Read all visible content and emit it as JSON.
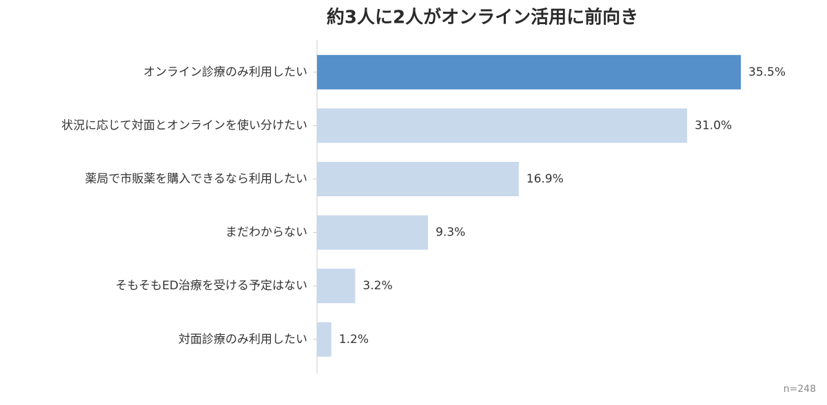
{
  "chart_data": {
    "type": "hbar",
    "title": "約3人に2人がオンライン活用に前向き",
    "categories": [
      "オンライン診療のみ利用したい",
      "状況に応じて対面とオンラインを使い分けたい",
      "薬局で市販薬を購入できるなら利用したい",
      "まだわからない",
      "そもそもED治療を受ける予定はない",
      "対面診療のみ利用したい"
    ],
    "values": [
      35.5,
      31.0,
      16.9,
      9.3,
      3.2,
      1.2
    ],
    "value_labels": [
      "35.5%",
      "31.0%",
      "16.9%",
      "9.3%",
      "3.2%",
      "1.2%"
    ],
    "colors": [
      "#5590cb",
      "#c9d9ec",
      "#c9d9ec",
      "#c9d9ec",
      "#c9d9ec",
      "#c9d9ec"
    ],
    "note": "n=248"
  }
}
